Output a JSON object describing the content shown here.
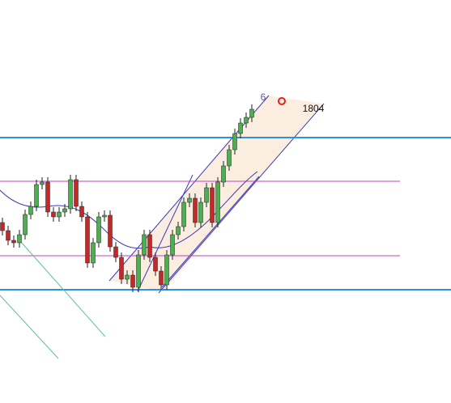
{
  "chart_data": {
    "type": "candlestick",
    "annotations": [
      "6",
      "1804"
    ],
    "ylim": [
      0,
      498
    ],
    "up_color": "#4caf50",
    "down_color": "#c62828",
    "open": [
      223,
      213,
      201,
      198,
      208,
      233,
      243,
      270,
      273,
      236,
      230,
      236,
      240,
      276,
      243,
      230,
      173,
      198,
      230,
      232,
      193,
      180,
      153,
      158,
      143,
      183,
      208,
      180,
      163,
      146,
      183,
      208,
      218,
      248,
      253,
      223,
      248,
      266,
      223,
      273,
      293,
      313,
      333,
      346,
      353
    ],
    "high": [
      229,
      219,
      207,
      214,
      239,
      249,
      276,
      279,
      279,
      242,
      242,
      246,
      282,
      282,
      249,
      236,
      204,
      236,
      238,
      238,
      199,
      186,
      164,
      164,
      189,
      214,
      214,
      186,
      169,
      189,
      214,
      224,
      254,
      259,
      259,
      254,
      272,
      272,
      279,
      299,
      319,
      339,
      352,
      359,
      369
    ],
    "low": [
      207,
      195,
      192,
      192,
      202,
      227,
      237,
      264,
      230,
      224,
      224,
      230,
      234,
      237,
      224,
      167,
      167,
      192,
      224,
      187,
      174,
      147,
      147,
      137,
      137,
      177,
      174,
      157,
      140,
      140,
      177,
      202,
      212,
      242,
      217,
      217,
      242,
      217,
      217,
      267,
      287,
      307,
      327,
      340,
      347
    ],
    "close": [
      213,
      201,
      198,
      208,
      233,
      243,
      270,
      273,
      236,
      230,
      236,
      240,
      276,
      243,
      230,
      173,
      198,
      230,
      232,
      193,
      180,
      153,
      158,
      143,
      183,
      208,
      180,
      163,
      146,
      183,
      208,
      218,
      248,
      253,
      223,
      248,
      266,
      223,
      273,
      293,
      313,
      333,
      346,
      353,
      363
    ]
  }
}
